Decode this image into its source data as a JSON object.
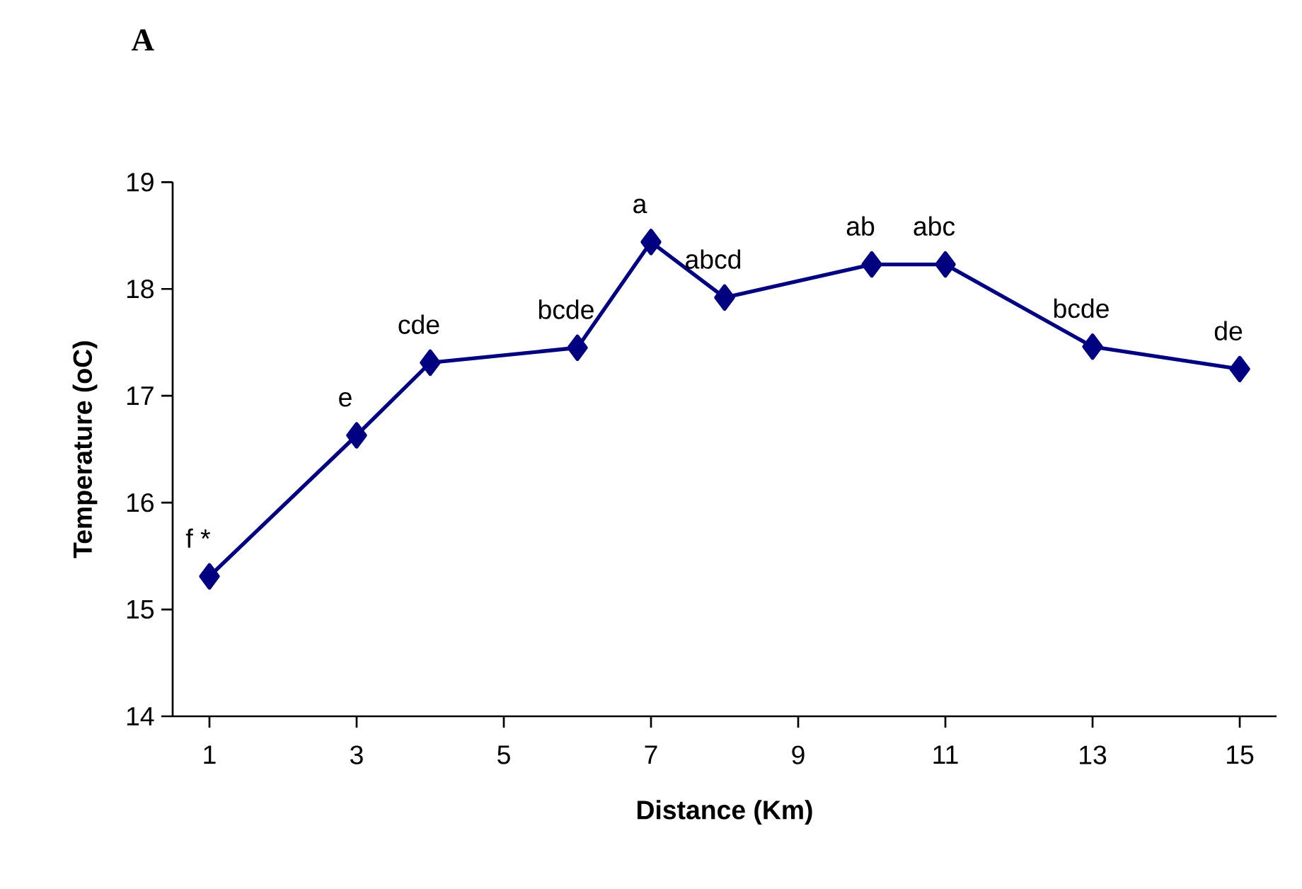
{
  "chart_data": {
    "type": "line",
    "title": "A",
    "xlabel": "Distance (Km)",
    "ylabel": "Temperature (oC)",
    "x": [
      1,
      3,
      4,
      6,
      7,
      8,
      10,
      11,
      13,
      15
    ],
    "series": [
      {
        "color": "#000080",
        "values": [
          15.31,
          16.63,
          17.31,
          17.45,
          18.44,
          17.92,
          18.23,
          18.23,
          17.46,
          17.25
        ]
      }
    ],
    "xlim": [
      0.5,
      15.5
    ],
    "xticks": [
      1,
      3,
      5,
      7,
      9,
      11,
      13,
      15
    ],
    "ylim": [
      14,
      19
    ],
    "yticks": [
      14,
      15,
      16,
      17,
      18,
      19
    ],
    "grid": false,
    "marker": "diamond",
    "line_style": "solid",
    "annotations": [
      {
        "text": "f *",
        "x": 1,
        "y": 15.31
      },
      {
        "text": "e",
        "x": 3,
        "y": 16.63
      },
      {
        "text": "cde",
        "x": 4,
        "y": 17.31
      },
      {
        "text": "bcde",
        "x": 6,
        "y": 17.45
      },
      {
        "text": "a",
        "x": 7,
        "y": 18.44
      },
      {
        "text": "abcd",
        "x": 8,
        "y": 17.92
      },
      {
        "text": "ab",
        "x": 10,
        "y": 18.23
      },
      {
        "text": "abc",
        "x": 11,
        "y": 18.23
      },
      {
        "text": "bcde",
        "x": 13,
        "y": 17.46
      },
      {
        "text": "de",
        "x": 15,
        "y": 17.25
      }
    ]
  }
}
